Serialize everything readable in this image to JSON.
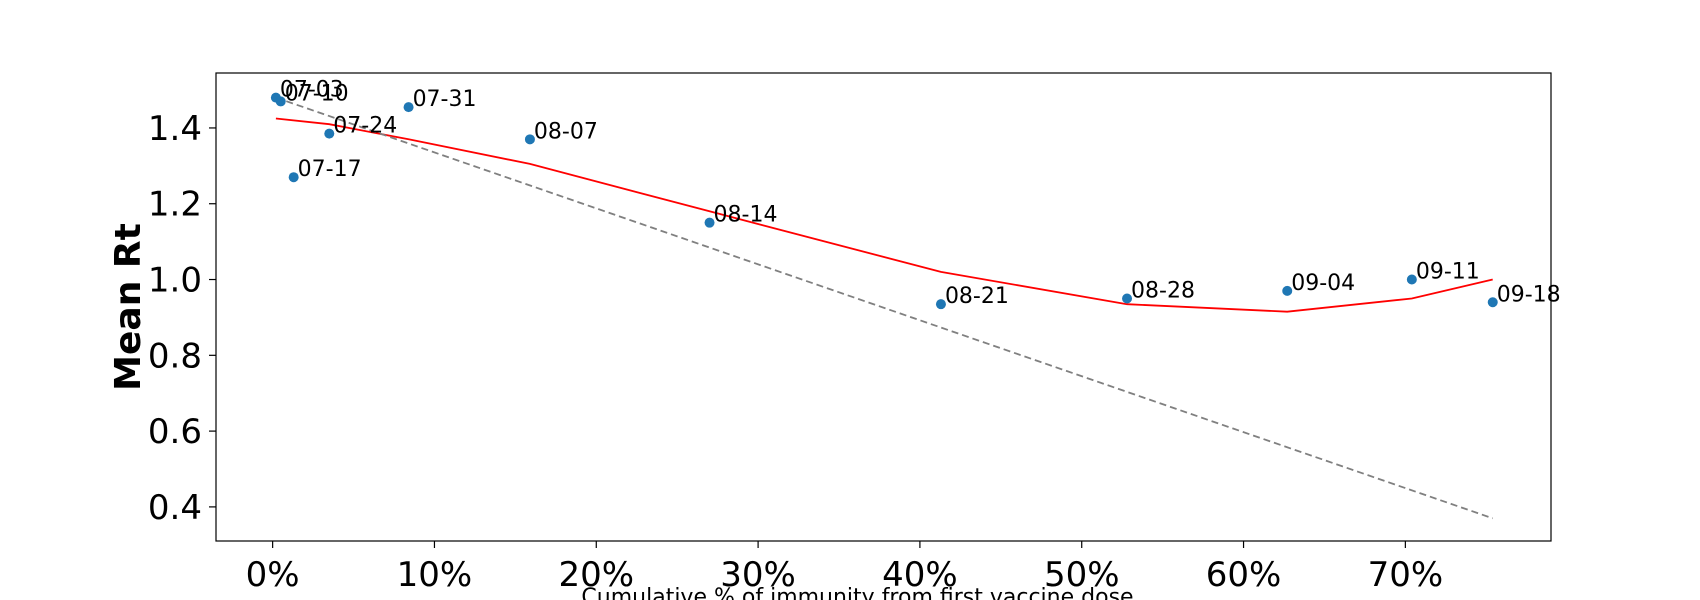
{
  "chart_data": {
    "type": "scatter",
    "title": "",
    "xlabel": "Cumulative % of immunity from first vaccine dose",
    "ylabel": "Mean Rt",
    "xlim": [
      -3.5,
      79
    ],
    "ylim": [
      0.31,
      1.545
    ],
    "x_ticks": [
      0,
      10,
      20,
      30,
      40,
      50,
      60,
      70
    ],
    "x_tick_labels": [
      "0%",
      "10%",
      "20%",
      "30%",
      "40%",
      "50%",
      "60%",
      "70%"
    ],
    "y_ticks": [
      0.4,
      0.6,
      0.8,
      1.0,
      1.2,
      1.4
    ],
    "y_tick_labels": [
      "0.4",
      "0.6",
      "0.8",
      "1.0",
      "1.2",
      "1.4"
    ],
    "grid": false,
    "points": [
      {
        "label": "07-03",
        "x": 0.2,
        "y": 1.48
      },
      {
        "label": "07-10",
        "x": 0.5,
        "y": 1.47
      },
      {
        "label": "07-17",
        "x": 1.3,
        "y": 1.27
      },
      {
        "label": "07-24",
        "x": 3.5,
        "y": 1.385
      },
      {
        "label": "07-31",
        "x": 8.4,
        "y": 1.455
      },
      {
        "label": "08-07",
        "x": 15.9,
        "y": 1.37
      },
      {
        "label": "08-14",
        "x": 27.0,
        "y": 1.15
      },
      {
        "label": "08-21",
        "x": 41.3,
        "y": 0.935
      },
      {
        "label": "08-28",
        "x": 52.8,
        "y": 0.95
      },
      {
        "label": "09-04",
        "x": 62.7,
        "y": 0.97
      },
      {
        "label": "09-11",
        "x": 70.4,
        "y": 1.0
      },
      {
        "label": "09-18",
        "x": 75.4,
        "y": 0.94
      }
    ],
    "series": [
      {
        "kind": "smoothed-fit",
        "color": "#ff0000",
        "style": "solid",
        "x": [
          0.2,
          3.5,
          8.4,
          15.9,
          27.0,
          41.3,
          52.8,
          62.7,
          70.4,
          75.4
        ],
        "y": [
          1.425,
          1.41,
          1.37,
          1.305,
          1.18,
          1.02,
          0.935,
          0.915,
          0.95,
          1.0
        ]
      },
      {
        "kind": "linear-reference",
        "color": "#808080",
        "style": "dashed",
        "x": [
          0.2,
          75.4
        ],
        "y": [
          1.48,
          0.37
        ]
      }
    ],
    "point_color": "#1f77b4"
  }
}
